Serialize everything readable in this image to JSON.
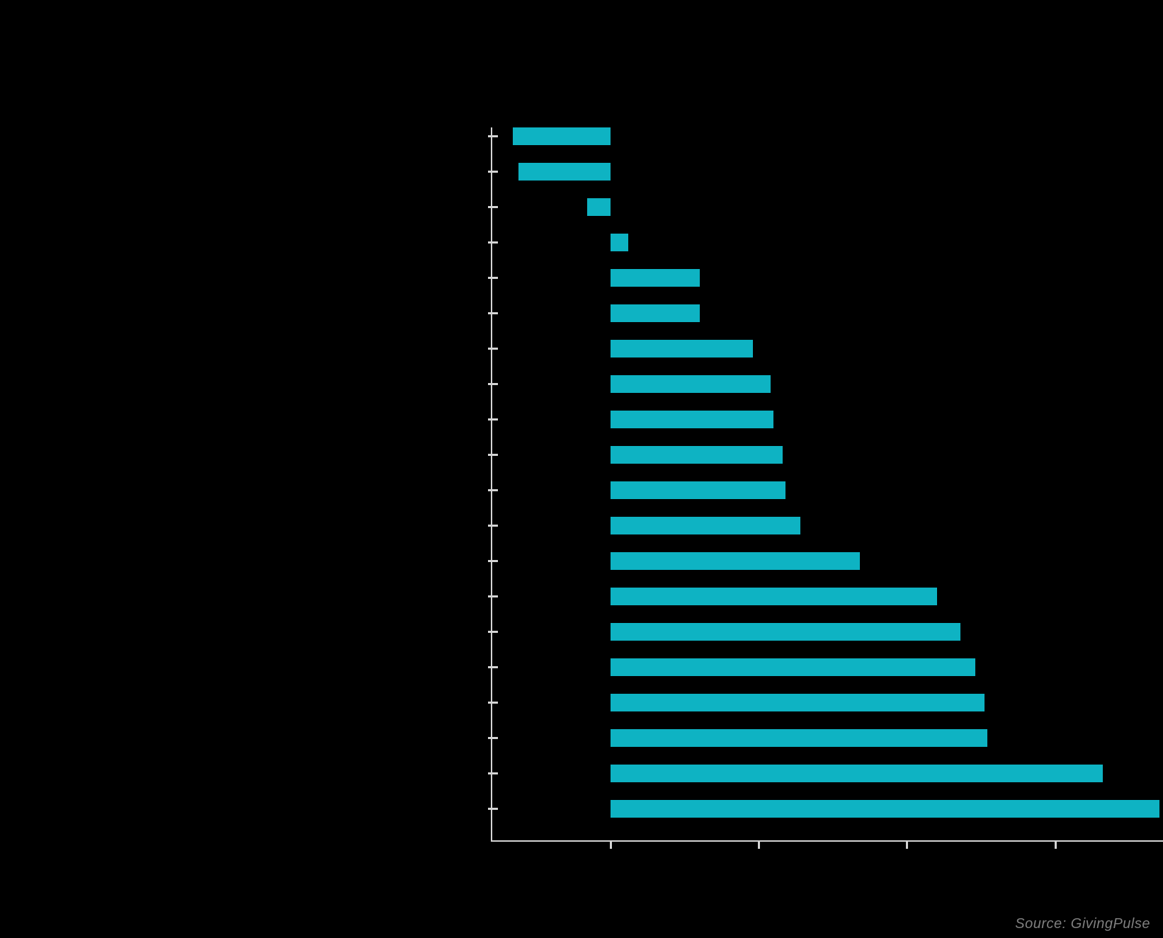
{
  "background_color": "#000000",
  "chart_data": {
    "type": "bar",
    "orientation": "horizontal",
    "title": "",
    "title_visible": false,
    "category_labels_visible": false,
    "tick_labels_visible": false,
    "notes": "Chart text (title, category labels, axis tick labels) is rendered black-on-black and not visible in the pixels. Bar values are estimated from unlabeled axis ticks assuming one tick interval = 5 units, zero at the first tick.",
    "n_bars": 20,
    "values": [
      -3.3,
      -3.1,
      -0.8,
      0.6,
      3.0,
      3.0,
      4.8,
      5.4,
      5.5,
      5.8,
      5.9,
      6.4,
      8.4,
      11.0,
      11.8,
      12.3,
      12.6,
      12.7,
      16.6,
      18.5
    ],
    "sort_order": "ascending from top to bottom",
    "xticks": [
      0,
      5,
      10,
      15
    ],
    "xlim": [
      -4.0,
      18.6
    ],
    "grid": false,
    "legend": "none",
    "bar_color": "#0EB3C3",
    "axis_color": "#D4D4D4",
    "source": "Source: GivingPulse",
    "source_color": "#7F7F7F"
  }
}
